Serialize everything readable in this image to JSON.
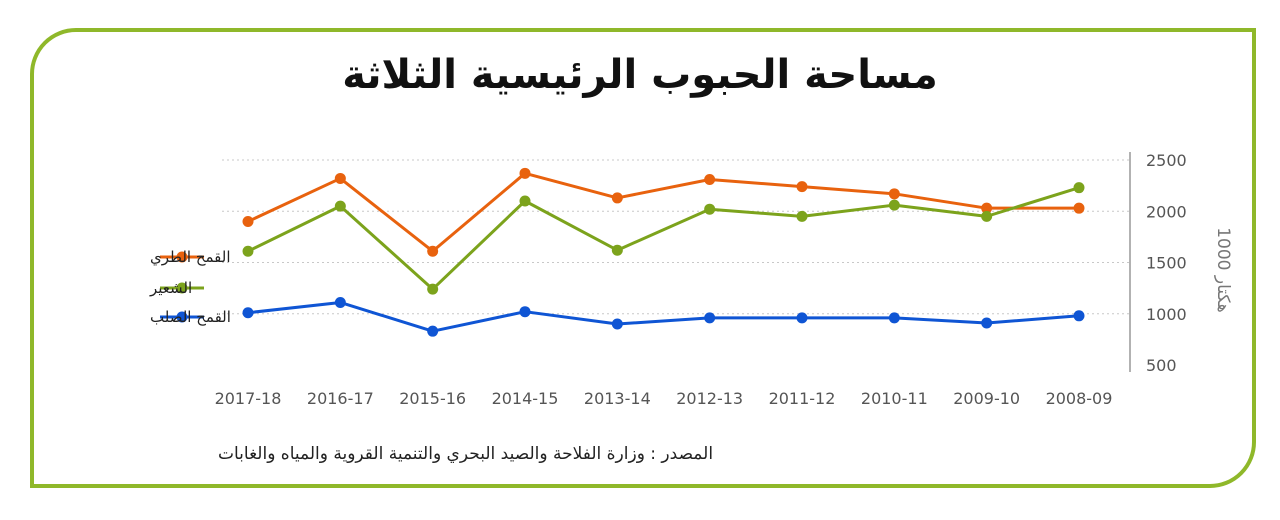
{
  "title": "مساحة الحبوب الرئيسية الثلاثة",
  "source": "المصدر : وزارة الفلاحة والصيد البحري والتنمية القروية والمياه والغابات",
  "colors": {
    "frame": "#8fb82a",
    "soft_wheat": "#e8620e",
    "barley": "#7ca31c",
    "durum_wheat": "#0f55d4"
  },
  "chart_data": {
    "type": "line",
    "categories": [
      "2017-18",
      "2016-17",
      "2015-16",
      "2014-15",
      "2013-14",
      "2012-13",
      "2011-12",
      "2010-11",
      "2009-10",
      "2008-09"
    ],
    "series": [
      {
        "name": "القمح الطري",
        "color": "#e8620e",
        "values": [
          1900,
          2320,
          1610,
          2370,
          2130,
          2310,
          2240,
          2170,
          2030,
          2030
        ]
      },
      {
        "name": "الشعير",
        "color": "#7ca31c",
        "values": [
          1610,
          2050,
          1240,
          2100,
          1620,
          2020,
          1950,
          2060,
          1950,
          2230
        ]
      },
      {
        "name": "القمح الصلب",
        "color": "#0f55d4",
        "values": [
          1010,
          1110,
          830,
          1020,
          900,
          960,
          960,
          960,
          910,
          980
        ]
      }
    ],
    "ylabel": "1000 هكتار",
    "ylim": [
      500,
      2500
    ],
    "yticks": [
      500,
      1000,
      1500,
      2000,
      2500
    ],
    "y_axis_side": "right",
    "grid": true,
    "legend_position": "left"
  }
}
